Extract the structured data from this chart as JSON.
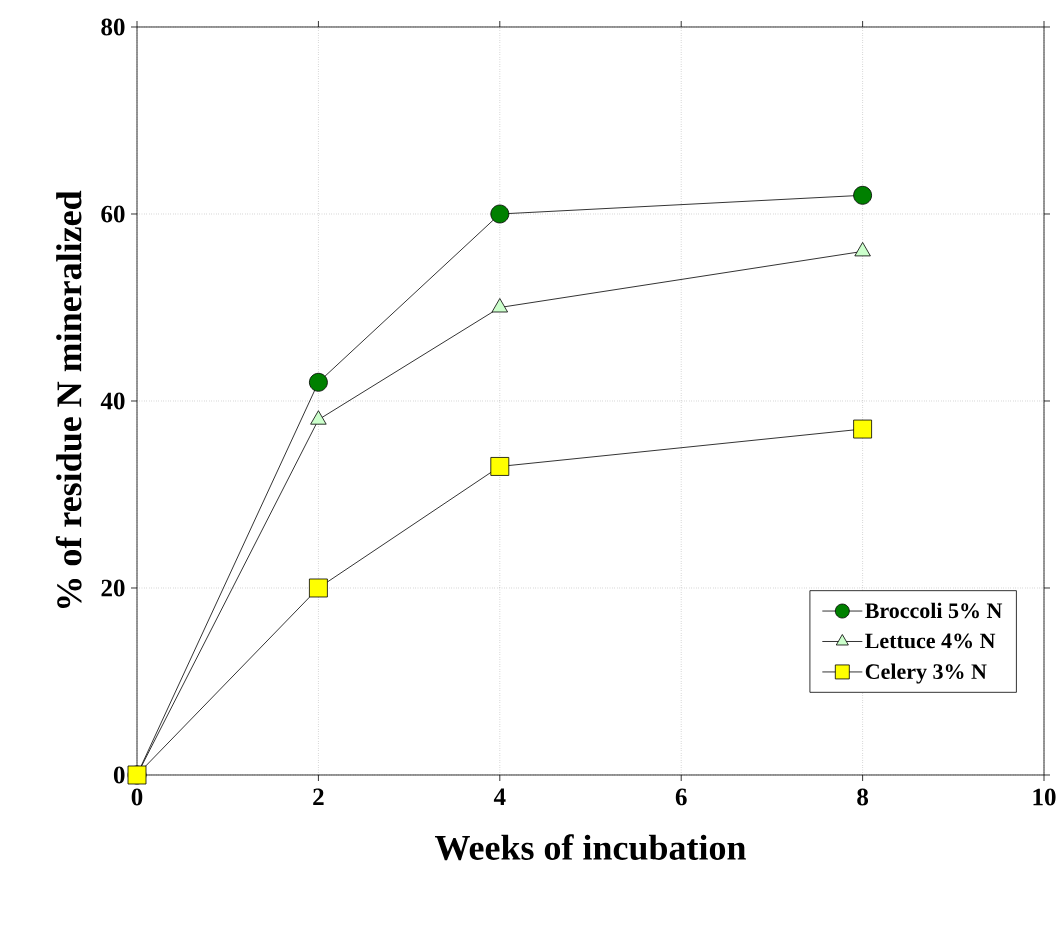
{
  "chart_data": {
    "type": "line",
    "xlabel": "Weeks of incubation",
    "ylabel": "% of residue N mineralized",
    "x": [
      0,
      2,
      4,
      8
    ],
    "series": [
      {
        "name": "Broccoli 5% N",
        "color": "#008000",
        "marker": "circle",
        "values": [
          0,
          42,
          60,
          62
        ]
      },
      {
        "name": "Lettuce 4% N",
        "color": "#ccffcc",
        "marker": "triangle",
        "values": [
          0,
          38,
          50,
          56
        ]
      },
      {
        "name": "Celery 3% N",
        "color": "#ffff00",
        "marker": "square",
        "values": [
          0,
          20,
          33,
          37
        ]
      }
    ],
    "xlim": [
      0,
      10
    ],
    "xticks": [
      0,
      2,
      4,
      6,
      8,
      10
    ],
    "ylim": [
      0,
      80
    ],
    "yticks": [
      0,
      20,
      40,
      60,
      80
    ],
    "grid": true,
    "legend": "bottom right",
    "line_style": "solid"
  }
}
